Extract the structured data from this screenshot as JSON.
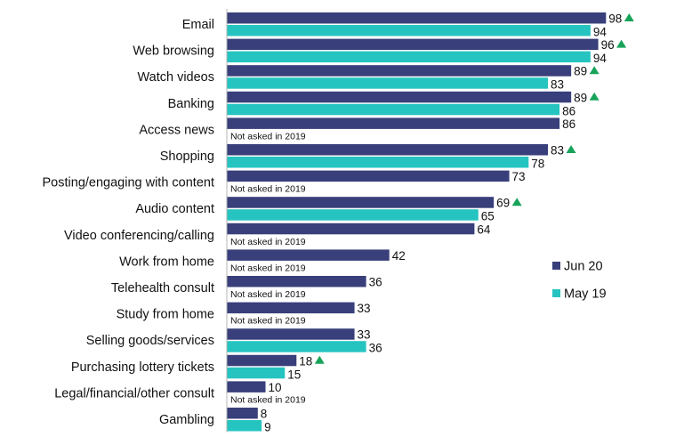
{
  "chart_data": {
    "type": "bar",
    "orientation": "horizontal",
    "grid": false,
    "legend_position": "right",
    "xlim": [
      0,
      100
    ],
    "colors": {
      "jun20": "#383f7a",
      "may19": "#26c4c0",
      "increase_marker": "#18a35a"
    },
    "categories": [
      "Email",
      "Web browsing",
      "Watch videos",
      "Banking",
      "Access news",
      "Shopping",
      "Posting/engaging with content",
      "Audio content",
      "Video conferencing/calling",
      "Work from home",
      "Telehealth consult",
      "Study from home",
      "Selling goods/services",
      "Purchasing lottery tickets",
      "Legal/financial/other consult",
      "Gambling"
    ],
    "series": [
      {
        "name": "Jun 20",
        "values": [
          98,
          96,
          89,
          89,
          86,
          83,
          73,
          69,
          64,
          42,
          36,
          33,
          33,
          18,
          10,
          8
        ]
      },
      {
        "name": "May 19",
        "values": [
          94,
          94,
          83,
          86,
          null,
          78,
          null,
          65,
          null,
          null,
          null,
          null,
          36,
          15,
          null,
          9
        ]
      }
    ],
    "increase_markers": [
      true,
      true,
      true,
      true,
      false,
      true,
      false,
      true,
      false,
      false,
      false,
      false,
      false,
      true,
      false,
      false
    ],
    "not_asked_note": "Not asked in 2019"
  }
}
